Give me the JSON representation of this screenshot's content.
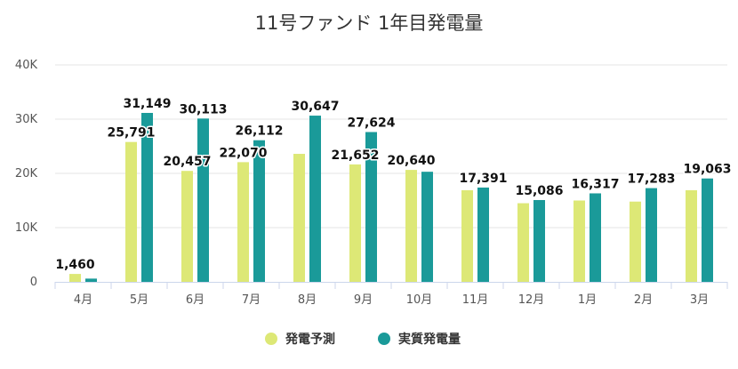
{
  "chart_data": {
    "type": "bar",
    "title": "11号ファンド 1年目発電量",
    "categories": [
      "4月",
      "5月",
      "6月",
      "7月",
      "8月",
      "9月",
      "10月",
      "11月",
      "12月",
      "1月",
      "2月",
      "3月"
    ],
    "series": [
      {
        "name": "発電予測",
        "color": "#dde876",
        "values": [
          1460,
          25791,
          20457,
          22070,
          23600,
          21652,
          20640,
          16900,
          14500,
          15000,
          14800,
          16900
        ],
        "labels": [
          "1,460",
          "25,791",
          "20,457",
          "22,070",
          "",
          "21,652",
          "20,640",
          "",
          "",
          "",
          "",
          ""
        ]
      },
      {
        "name": "実質発電量",
        "color": "#1a9a99",
        "values": [
          600,
          31149,
          30113,
          26112,
          30647,
          27624,
          20300,
          17391,
          15086,
          16317,
          17283,
          19063
        ],
        "labels": [
          "",
          "31,149",
          "30,113",
          "26,112",
          "30,647",
          "27,624",
          "",
          "17,391",
          "15,086",
          "16,317",
          "17,283",
          "19,063"
        ]
      }
    ],
    "yaxis": {
      "min": 0,
      "max": 40000,
      "ticks": [
        {
          "value": 0,
          "label": "0"
        },
        {
          "value": 10000,
          "label": "10K"
        },
        {
          "value": 20000,
          "label": "20K"
        },
        {
          "value": 30000,
          "label": "30K"
        },
        {
          "value": 40000,
          "label": "40K"
        }
      ]
    },
    "grid": true,
    "legend_position": "bottom-center"
  }
}
